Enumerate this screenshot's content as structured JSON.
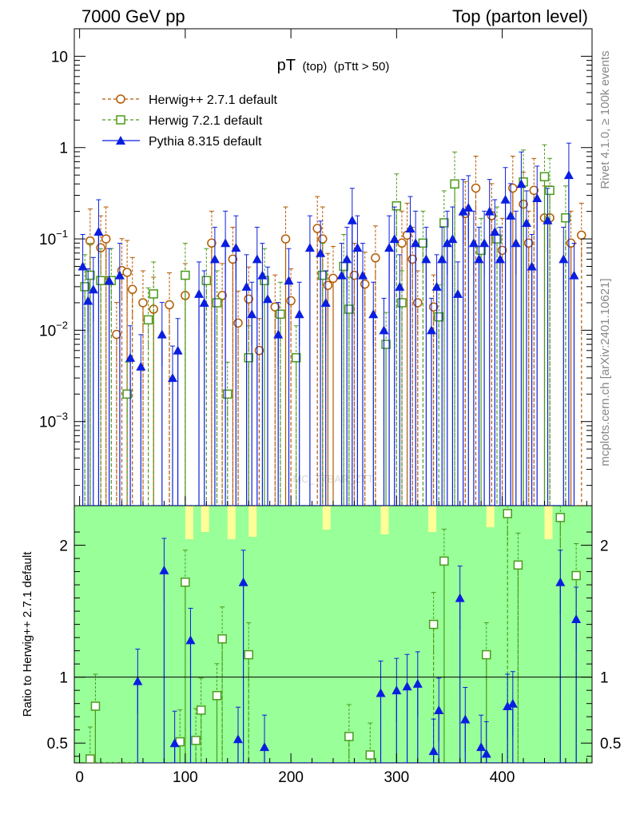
{
  "header": {
    "left_label": "7000 GeV pp",
    "right_label": "Top (parton level)"
  },
  "side_labels": {
    "rivet": "Rivet 4.1.0, ≥ 100k events",
    "mcplots": "mcplots.cern.ch [arXiv:2401.10621]"
  },
  "watermark": "MC_TTBAR_ZTT",
  "chart_data": {
    "type": "line",
    "title_main": "pT",
    "title_sub": "(top)",
    "title_cut": "(pTtt > 50)",
    "xlim": [
      -5,
      485
    ],
    "x_ticks": [
      0,
      100,
      200,
      300,
      400
    ],
    "main": {
      "yscale": "log",
      "ylim": [
        0.00012,
        20
      ],
      "y_ticks": [
        {
          "value": 10,
          "base": "10",
          "exp": ""
        },
        {
          "value": 1,
          "base": "1",
          "exp": ""
        },
        {
          "value": 0.1,
          "base": "10",
          "exp": "−1"
        },
        {
          "value": 0.01,
          "base": "10",
          "exp": "−2"
        },
        {
          "value": 0.001,
          "base": "10",
          "exp": "−3"
        }
      ]
    },
    "ratio": {
      "ylabel": "Ratio to Herwig++ 2.7.1 default",
      "ylim": [
        0.35,
        2.3
      ],
      "y_ticks": [
        {
          "value": 2,
          "label": "2"
        },
        {
          "value": 1,
          "label": "1"
        },
        {
          "value": 0.5,
          "label": "0.5"
        }
      ],
      "reference_line": 1
    },
    "series": [
      {
        "name": "Herwig++ 2.7.1 default",
        "color": "#b35900",
        "marker": "circle",
        "dash": true,
        "points": [
          [
            10,
            0.095
          ],
          [
            20,
            0.08
          ],
          [
            25,
            0.1
          ],
          [
            35,
            0.009
          ],
          [
            40,
            0.045
          ],
          [
            45,
            0.043
          ],
          [
            50,
            0.028
          ],
          [
            60,
            0.02
          ],
          [
            70,
            0.017
          ],
          [
            85,
            0.019
          ],
          [
            100,
            0.024
          ],
          [
            125,
            0.09
          ],
          [
            135,
            0.024
          ],
          [
            145,
            0.06
          ],
          [
            150,
            0.012
          ],
          [
            160,
            0.022
          ],
          [
            170,
            0.006
          ],
          [
            185,
            0.018
          ],
          [
            195,
            0.1
          ],
          [
            200,
            0.021
          ],
          [
            225,
            0.13
          ],
          [
            230,
            0.1
          ],
          [
            235,
            0.031
          ],
          [
            240,
            0.037
          ],
          [
            260,
            0.04
          ],
          [
            270,
            0.032
          ],
          [
            280,
            0.062
          ],
          [
            305,
            0.09
          ],
          [
            310,
            0.11
          ],
          [
            315,
            0.06
          ],
          [
            320,
            0.02
          ],
          [
            335,
            0.018
          ],
          [
            365,
            0.19
          ],
          [
            375,
            0.36
          ],
          [
            390,
            0.18
          ],
          [
            400,
            0.075
          ],
          [
            410,
            0.36
          ],
          [
            420,
            0.24
          ],
          [
            425,
            0.09
          ],
          [
            430,
            0.34
          ],
          [
            440,
            0.17
          ],
          [
            445,
            0.17
          ],
          [
            465,
            0.09
          ],
          [
            475,
            0.11
          ]
        ],
        "ratio_points": []
      },
      {
        "name": "Herwig 7.2.1 default",
        "color": "#4a9b1a",
        "marker": "square",
        "dash": true,
        "points": [
          [
            5,
            0.03
          ],
          [
            10,
            0.04
          ],
          [
            20,
            0.035
          ],
          [
            30,
            0.035
          ],
          [
            45,
            0.002
          ],
          [
            65,
            0.013
          ],
          [
            70,
            0.025
          ],
          [
            100,
            0.04
          ],
          [
            120,
            0.035
          ],
          [
            130,
            0.02
          ],
          [
            140,
            0.002
          ],
          [
            160,
            0.005
          ],
          [
            175,
            0.035
          ],
          [
            190,
            0.015
          ],
          [
            205,
            0.005
          ],
          [
            230,
            0.04
          ],
          [
            250,
            0.05
          ],
          [
            255,
            0.017
          ],
          [
            290,
            0.007
          ],
          [
            300,
            0.23
          ],
          [
            305,
            0.02
          ],
          [
            325,
            0.09
          ],
          [
            340,
            0.014
          ],
          [
            345,
            0.15
          ],
          [
            355,
            0.4
          ],
          [
            380,
            0.075
          ],
          [
            395,
            0.1
          ],
          [
            420,
            0.42
          ],
          [
            440,
            0.48
          ],
          [
            445,
            0.34
          ],
          [
            460,
            0.17
          ]
        ],
        "ratio_points": [
          [
            10,
            0.38
          ],
          [
            15,
            0.78
          ],
          [
            95,
            0.51
          ],
          [
            100,
            1.72
          ],
          [
            110,
            0.52
          ],
          [
            115,
            0.75
          ],
          [
            130,
            0.86
          ],
          [
            135,
            1.29
          ],
          [
            160,
            1.17
          ],
          [
            255,
            0.55
          ],
          [
            275,
            0.41
          ],
          [
            335,
            1.4
          ],
          [
            345,
            1.88
          ],
          [
            385,
            1.17
          ],
          [
            405,
            2.24
          ],
          [
            415,
            1.85
          ],
          [
            455,
            2.21
          ],
          [
            470,
            1.77
          ]
        ]
      },
      {
        "name": "Pythia 8.315 default",
        "color": "#0a1ee0",
        "marker": "triangle",
        "dash": false,
        "points": [
          [
            3,
            0.05
          ],
          [
            8,
            0.021
          ],
          [
            13,
            0.028
          ],
          [
            18,
            0.12
          ],
          [
            28,
            0.035
          ],
          [
            38,
            0.04
          ],
          [
            48,
            0.005
          ],
          [
            58,
            0.004
          ],
          [
            78,
            0.009
          ],
          [
            88,
            0.003
          ],
          [
            93,
            0.006
          ],
          [
            113,
            0.025
          ],
          [
            118,
            0.02
          ],
          [
            128,
            0.06
          ],
          [
            138,
            0.09
          ],
          [
            148,
            0.08
          ],
          [
            158,
            0.03
          ],
          [
            163,
            0.015
          ],
          [
            168,
            0.06
          ],
          [
            173,
            0.04
          ],
          [
            178,
            0.022
          ],
          [
            188,
            0.009
          ],
          [
            198,
            0.035
          ],
          [
            208,
            0.015
          ],
          [
            218,
            0.08
          ],
          [
            228,
            0.07
          ],
          [
            233,
            0.02
          ],
          [
            248,
            0.04
          ],
          [
            253,
            0.06
          ],
          [
            258,
            0.16
          ],
          [
            263,
            0.08
          ],
          [
            268,
            0.04
          ],
          [
            278,
            0.015
          ],
          [
            288,
            0.01
          ],
          [
            293,
            0.08
          ],
          [
            298,
            0.1
          ],
          [
            303,
            0.03
          ],
          [
            313,
            0.13
          ],
          [
            318,
            0.09
          ],
          [
            328,
            0.06
          ],
          [
            333,
            0.01
          ],
          [
            338,
            0.03
          ],
          [
            343,
            0.06
          ],
          [
            348,
            0.09
          ],
          [
            353,
            0.1
          ],
          [
            358,
            0.025
          ],
          [
            363,
            0.2
          ],
          [
            368,
            0.22
          ],
          [
            373,
            0.09
          ],
          [
            378,
            0.06
          ],
          [
            383,
            0.09
          ],
          [
            388,
            0.2
          ],
          [
            393,
            0.12
          ],
          [
            398,
            0.06
          ],
          [
            403,
            0.27
          ],
          [
            408,
            0.18
          ],
          [
            413,
            0.09
          ],
          [
            418,
            0.4
          ],
          [
            423,
            0.15
          ],
          [
            428,
            0.05
          ],
          [
            433,
            0.28
          ],
          [
            443,
            0.16
          ],
          [
            458,
            0.06
          ],
          [
            463,
            0.5
          ],
          [
            468,
            0.04
          ]
        ],
        "ratio_points": [
          [
            55,
            0.97
          ],
          [
            80,
            1.81
          ],
          [
            90,
            0.5
          ],
          [
            105,
            1.28
          ],
          [
            150,
            0.53
          ],
          [
            155,
            1.72
          ],
          [
            175,
            0.47
          ],
          [
            285,
            0.88
          ],
          [
            300,
            0.9
          ],
          [
            310,
            0.93
          ],
          [
            320,
            0.95
          ],
          [
            335,
            0.44
          ],
          [
            340,
            0.75
          ],
          [
            360,
            1.6
          ],
          [
            365,
            0.68
          ],
          [
            380,
            0.47
          ],
          [
            385,
            0.42
          ],
          [
            405,
            0.78
          ],
          [
            410,
            0.8
          ],
          [
            455,
            1.72
          ],
          [
            470,
            1.44
          ]
        ]
      }
    ]
  }
}
